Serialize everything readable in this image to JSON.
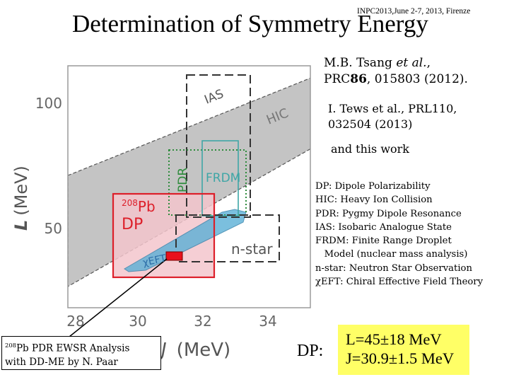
{
  "header": {
    "conference": "INPC2013,June 2-7, 2013, Firenze",
    "title": "Determination of Symmetry Energy"
  },
  "references": {
    "tsang_author": "M.B. Tsang",
    "tsang_etal": "et al.",
    "tsang_comma": ",",
    "tsang_journal": "PRC",
    "tsang_volume": "86",
    "tsang_pages": ", 015803 (2012).",
    "tews_line1": "I. Tews et al., PRL110,",
    "tews_line2": "032504 (2013)",
    "this_work": "and this work"
  },
  "legend": [
    "DP: Dipole Polarizability",
    "HIC: Heavy Ion Collision",
    "PDR: Pygmy Dipole Resonance",
    "IAS: Isobaric Analogue State",
    "FRDM: Finite Range Droplet",
    "   Model (nuclear mass analysis)",
    "n-star: Neutron Star Observation",
    "χEFT: Chiral Effective Field Theory"
  ],
  "plot": {
    "y_axis_label_symbol": "L",
    "y_axis_label_unit": "(MeV)",
    "x_axis_label_symbol": "J",
    "x_axis_label_unit": "(MeV)",
    "y_ticks": [
      "100",
      "50"
    ],
    "x_ticks": [
      "28",
      "30",
      "32",
      "34"
    ],
    "region_labels": {
      "ias": "IAS",
      "hic": "HIC",
      "pdr": "PDR",
      "frdm": "FRDM",
      "nstar": "n-star",
      "chieft": "χEFT",
      "dp_sup": "208",
      "dp_el": "Pb",
      "dp": "DP"
    }
  },
  "chart_data": {
    "type": "diagram",
    "xlabel": "J (MeV)",
    "ylabel": "L (MeV)",
    "xlim": [
      28,
      35
    ],
    "x_ticks": [
      28,
      30,
      32,
      34
    ],
    "y_ticks": [
      50,
      100
    ],
    "regions": [
      {
        "name": "HIC",
        "shape": "gray band"
      },
      {
        "name": "IAS",
        "shape": "dashed box"
      },
      {
        "name": "PDR",
        "shape": "green dotted box"
      },
      {
        "name": "FRDM",
        "shape": "teal box"
      },
      {
        "name": "n-star",
        "shape": "dashed box"
      },
      {
        "name": "χEFT",
        "shape": "blue band"
      },
      {
        "name": "208Pb DP",
        "shape": "red box"
      }
    ],
    "marker": {
      "name": "208Pb PDR EWSR",
      "shape": "red rectangle"
    }
  },
  "note": {
    "sup": "208",
    "line1": "Pb PDR EWSR Analysis",
    "line2": "with DD-ME by N. Paar"
  },
  "result": {
    "prefix": "DP:",
    "L": "L=45±18 MeV",
    "J": "J=30.9±1.5 MeV"
  },
  "colors": {
    "hic_band": "#c4c4c4",
    "pdr_box": "#2e8b3c",
    "frdm_box": "#3fa6a6",
    "dp_box": "#dd1f2a",
    "dp_fill": "#f3c6cc",
    "chieft_band": "#5bb0d6",
    "marker": "#e8101c",
    "result_bg": "#ffff66"
  }
}
